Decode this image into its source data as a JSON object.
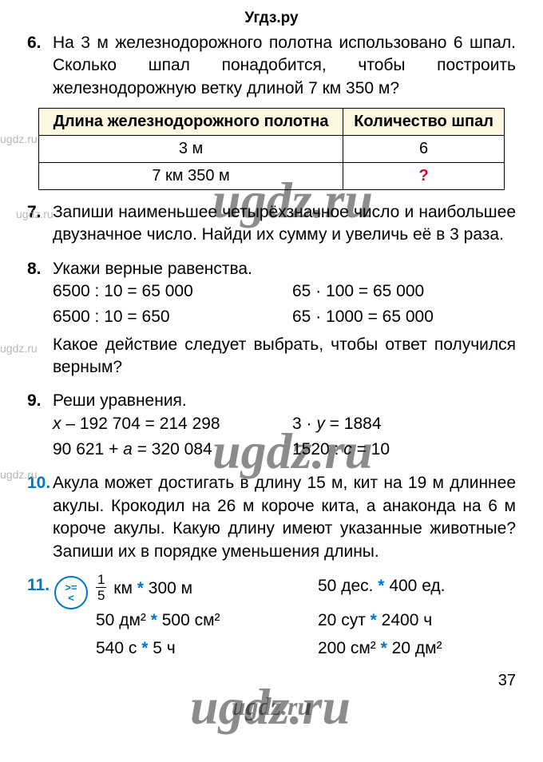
{
  "site_header": "Угдз.ру",
  "watermarks": {
    "small": "ugdz.ru",
    "big": "ugdz.ru",
    "footer": "ugdz.ru"
  },
  "page_number": "37",
  "p6": {
    "num": "6.",
    "text": "На 3 м железнодорожного полотна использовано 6 шпал. Сколько шпал понадобится, чтобы построить железнодорожную ветку длиной 7 км 350 м?",
    "table": {
      "header_bg": "#fdf7e2",
      "border_color": "#000000",
      "col1": "Длина железнодорожного полотна",
      "col2": "Количество шпал",
      "r1c1": "3 м",
      "r1c2": "6",
      "r2c1": "7 км 350 м",
      "r2c2": "?",
      "qmark_color": "#d4002a"
    }
  },
  "p7": {
    "num": "7.",
    "text": "Запиши наименьшее четырёхзначное число и наибольшее двузначное число. Найди их сумму и увеличь её в 3 раза."
  },
  "p8": {
    "num": "8.",
    "text": "Укажи верные равенства.",
    "eq": {
      "a": "6500 : 10 = 65 000",
      "b": "65 · 100 = 65 000",
      "c": "6500 : 10 = 650",
      "d": "65 · 1000 = 65 000"
    },
    "followup": "Какое действие следует выбрать, чтобы ответ получился верным?"
  },
  "p9": {
    "num": "9.",
    "text": "Реши уравнения.",
    "eq": {
      "a_pre": "x",
      "a_post": " – 192 704 = 214 298",
      "b_pre": "3 · ",
      "b_var": "y",
      "b_post": " = 1884",
      "c_pre": "90 621 + ",
      "c_var": "a",
      "c_post": " = 320 084",
      "d_pre": "1520 : ",
      "d_var": "c",
      "d_post": " = 10"
    }
  },
  "p10": {
    "num": "10.",
    "text": "Акула может достигать в длину 15 м, кит на 19 м длиннее акулы. Крокодил на 26 м короче кита, а анаконда на 6 м короче акулы. Какую длину имеют указанные животные? Запиши их в порядке уменьшения длины.",
    "num_color": "#0077c8"
  },
  "p11": {
    "num": "11.",
    "num_color": "#0077c8",
    "icon": {
      "top": ">=",
      "bottom": "<",
      "color": "#0077c8"
    },
    "rows": {
      "a_frac_num": "1",
      "a_frac_den": "5",
      "a_rest": " км * 300 м",
      "b": "50 дес. * 400 ед.",
      "c": "50 дм² * 500 см²",
      "d": "20 сут * 2400 ч",
      "e": "540 с * 5 ч",
      "f": "200 см² * 20 дм²"
    },
    "star_color": "#0077c8"
  }
}
